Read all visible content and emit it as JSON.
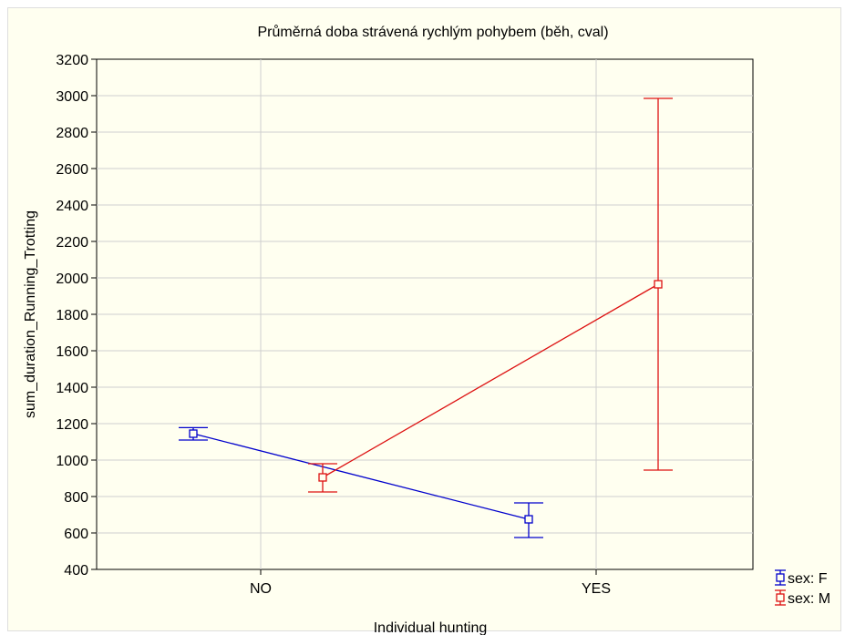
{
  "chart_data": {
    "type": "line",
    "title": "Průměrná doba strávená rychlým pohybem (běh, cval)",
    "xlabel": "Individual hunting",
    "ylabel": "sum_duration_Running_Trotting",
    "categories": [
      "NO",
      "YES"
    ],
    "ylim": [
      400,
      3200
    ],
    "yticks": [
      400,
      600,
      800,
      1000,
      1200,
      1400,
      1600,
      1800,
      2000,
      2200,
      2400,
      2600,
      2800,
      3000,
      3200
    ],
    "grid": true,
    "legend_position": "bottom-right outside",
    "series": [
      {
        "name": "sex: F",
        "color": "#0000cc",
        "values": [
          1145,
          675
        ],
        "err_low": [
          1110,
          575
        ],
        "err_high": [
          1178,
          765
        ]
      },
      {
        "name": "sex: M",
        "color": "#dd1111",
        "values": [
          905,
          1965
        ],
        "err_low": [
          825,
          945
        ],
        "err_high": [
          980,
          2985
        ]
      }
    ]
  }
}
